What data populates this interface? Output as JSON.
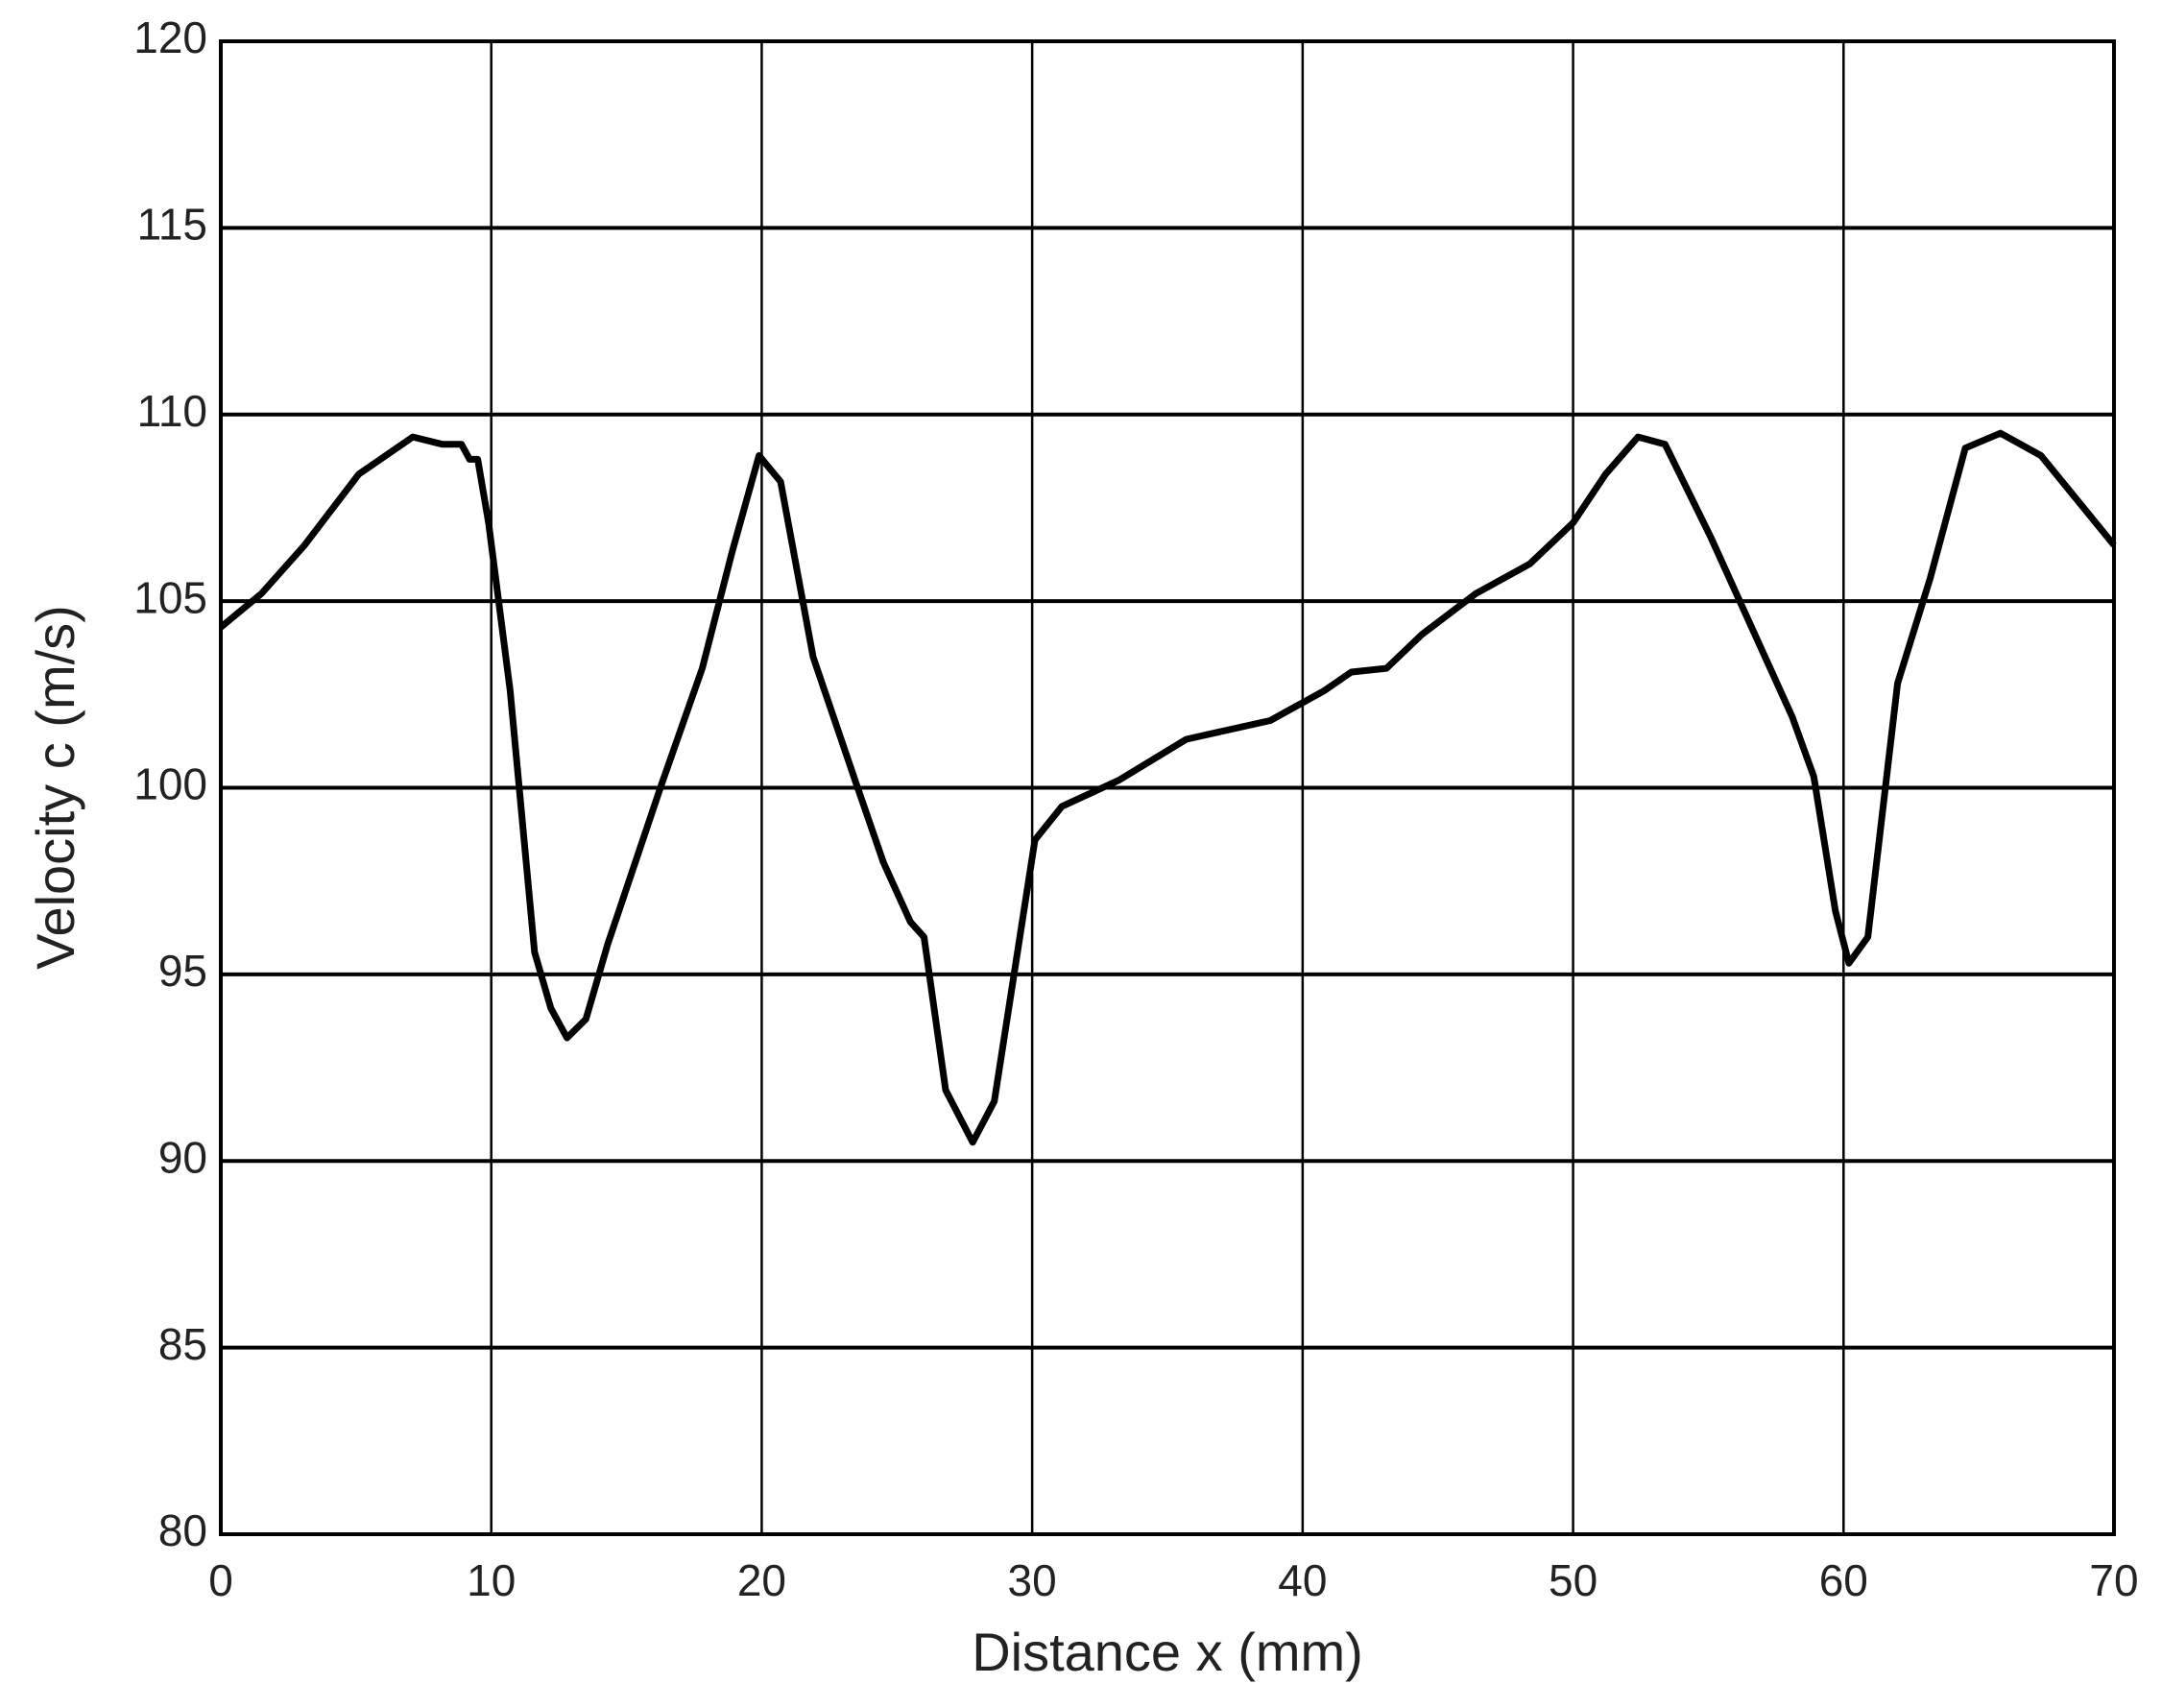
{
  "chart_data": {
    "type": "line",
    "xlabel": "Distance x (mm)",
    "ylabel": "Velocity c (m/s)",
    "xlim": [
      0,
      70
    ],
    "ylim": [
      80,
      120
    ],
    "xticks": [
      0,
      10,
      20,
      30,
      40,
      50,
      60,
      70
    ],
    "yticks": [
      80,
      85,
      90,
      95,
      100,
      105,
      110,
      115,
      120
    ],
    "grid": true,
    "series": [
      {
        "color": "#000000",
        "x": [
          0,
          1.5,
          3.1,
          5.1,
          7.1,
          8.2,
          8.9,
          9.2,
          9.5,
          9.9,
          10.7,
          11.6,
          12.2,
          12.8,
          13.5,
          14.3,
          16.3,
          17.8,
          18.9,
          19.9,
          20.7,
          21.9,
          23.5,
          24.5,
          25.5,
          26.0,
          26.8,
          27.8,
          28.6,
          30.1,
          31.1,
          33.2,
          35.7,
          38.8,
          40.8,
          41.8,
          43.1,
          44.4,
          46.4,
          48.4,
          50.0,
          51.2,
          52.4,
          53.4,
          55.1,
          56.6,
          58.1,
          58.9,
          59.7,
          60.2,
          60.9,
          62.0,
          63.2,
          64.5,
          65.8,
          67.3,
          70
        ],
        "values": [
          104.3,
          105.2,
          106.5,
          108.4,
          109.4,
          109.2,
          109.2,
          108.8,
          108.8,
          107.1,
          102.6,
          95.6,
          94.1,
          93.3,
          93.8,
          95.8,
          100.1,
          103.2,
          106.3,
          108.9,
          108.2,
          103.5,
          100.1,
          98.0,
          96.4,
          96.0,
          91.9,
          90.5,
          91.6,
          98.6,
          99.5,
          100.2,
          101.3,
          101.8,
          102.6,
          103.1,
          103.2,
          104.1,
          105.2,
          106.0,
          107.1,
          108.4,
          109.4,
          109.2,
          106.7,
          104.3,
          101.9,
          100.3,
          96.7,
          95.3,
          96.0,
          102.8,
          105.6,
          109.1,
          109.5,
          108.9,
          106.5
        ]
      }
    ]
  }
}
